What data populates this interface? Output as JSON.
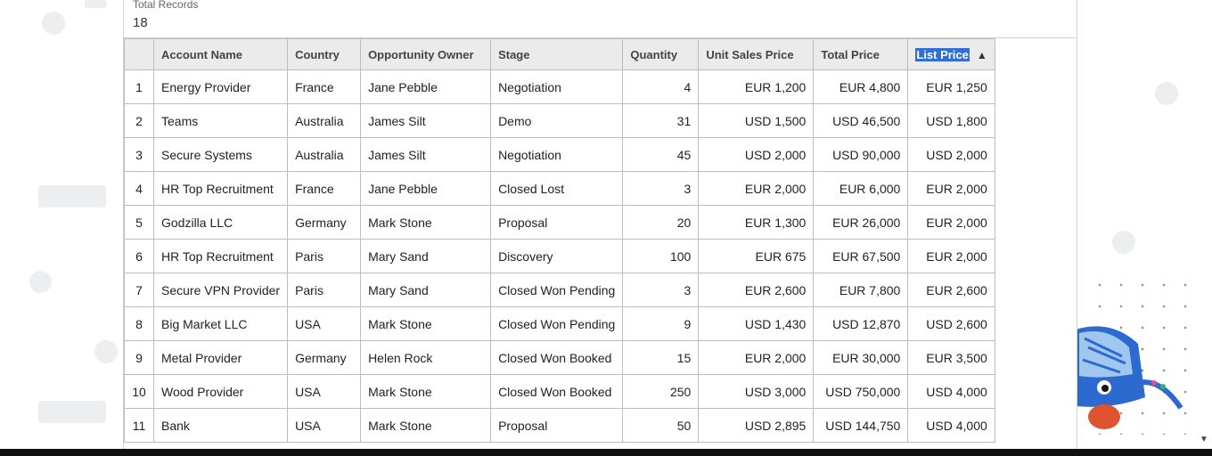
{
  "summary": {
    "label": "Total Records",
    "value": "18"
  },
  "table": {
    "columns": [
      "",
      "Account Name",
      "Country",
      "Opportunity Owner",
      "Stage",
      "Quantity",
      "Unit Sales Price",
      "Total Price",
      "List Price"
    ],
    "sort": {
      "column": "List Price",
      "direction": "ascending",
      "indicator": "▲"
    },
    "rows": [
      [
        "1",
        "Energy Provider",
        "France",
        "Jane Pebble",
        "Negotiation",
        "4",
        "EUR 1,200",
        "EUR 4,800",
        "EUR 1,250"
      ],
      [
        "2",
        "Teams",
        "Australia",
        "James Silt",
        "Demo",
        "31",
        "USD 1,500",
        "USD 46,500",
        "USD 1,800"
      ],
      [
        "3",
        "Secure Systems",
        "Australia",
        "James Silt",
        "Negotiation",
        "45",
        "USD 2,000",
        "USD 90,000",
        "USD 2,000"
      ],
      [
        "4",
        "HR Top Recruitment",
        "France",
        "Jane Pebble",
        "Closed Lost",
        "3",
        "EUR 2,000",
        "EUR 6,000",
        "EUR 2,000"
      ],
      [
        "5",
        "Godzilla LLC",
        "Germany",
        "Mark Stone",
        "Proposal",
        "20",
        "EUR 1,300",
        "EUR 26,000",
        "EUR 2,000"
      ],
      [
        "6",
        "HR Top Recruitment",
        "Paris",
        "Mary Sand",
        "Discovery",
        "100",
        "EUR 675",
        "EUR 67,500",
        "EUR 2,000"
      ],
      [
        "7",
        "Secure VPN Provider",
        "Paris",
        "Mary Sand",
        "Closed Won Pending",
        "3",
        "EUR 2,600",
        "EUR 7,800",
        "EUR 2,600"
      ],
      [
        "8",
        "Big Market LLC",
        "USA",
        "Mark Stone",
        "Closed Won Pending",
        "9",
        "USD 1,430",
        "USD 12,870",
        "USD 2,600"
      ],
      [
        "9",
        "Metal Provider",
        "Germany",
        "Helen Rock",
        "Closed Won Booked",
        "15",
        "EUR 2,000",
        "EUR 30,000",
        "EUR 3,500"
      ],
      [
        "10",
        "Wood Provider",
        "USA",
        "Mark Stone",
        "Closed Won Booked",
        "250",
        "USD 3,000",
        "USD 750,000",
        "USD 4,000"
      ],
      [
        "11",
        "Bank",
        "USA",
        "Mark Stone",
        "Proposal",
        "50",
        "USD 2,895",
        "USD 144,750",
        "USD 4,000"
      ]
    ]
  },
  "colors": {
    "selection": "#2f6fd6",
    "header_bg": "#ebebeb",
    "grid_line": "#bdbdbd",
    "decoration": "#eceef0"
  },
  "icons": {
    "sort": "triangle-up-icon",
    "scroll": "chevron-down-icon",
    "mascot": "robot-mascot-icon"
  }
}
